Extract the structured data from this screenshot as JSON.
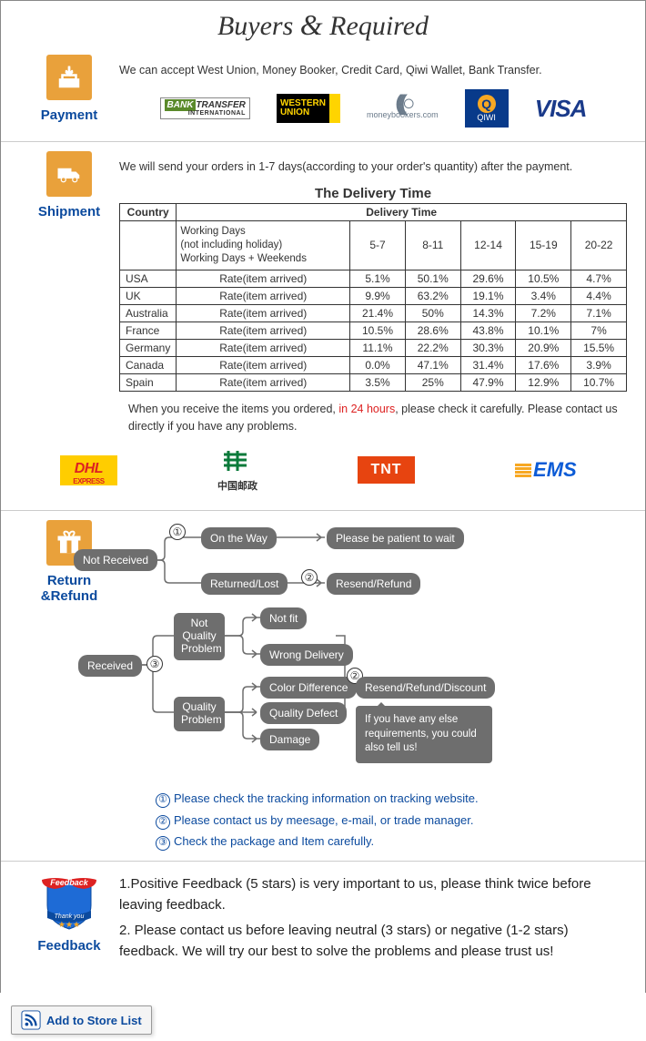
{
  "header": {
    "title_left": "Buyers",
    "title_amp": "&",
    "title_right": "Required"
  },
  "payment": {
    "label": "Payment",
    "intro": "We can accept West Union, Money Booker, Credit Card, Qiwi Wallet, Bank Transfer.",
    "logos": {
      "bank_transfer": {
        "bank": "BANK",
        "transfer": "TRANSFER",
        "intl": "INTERNATIONAL"
      },
      "western_union": {
        "l1": "WESTERN",
        "l2": "UNION"
      },
      "moneybookers": {
        "domain": "moneybookers.com"
      },
      "qiwi": {
        "q": "Q",
        "name": "QIWI"
      },
      "visa": "VISA"
    },
    "icon_color": "#e9a13b",
    "label_color": "#0b4a9e"
  },
  "shipment": {
    "label": "Shipment",
    "intro": "We will send your orders in 1-7 days(according to your order's quantity) after the payment.",
    "table": {
      "title": "The Delivery Time",
      "country_header": "Country",
      "delivery_header": "Delivery Time",
      "wd_line1": "Working Days",
      "wd_line2": "(not including holiday)",
      "wd_line3": "Working Days + Weekends",
      "rate_label": "Rate(item arrived)",
      "time_cols": [
        "5-7",
        "8-11",
        "12-14",
        "15-19",
        "20-22"
      ],
      "rows": [
        {
          "country": "USA",
          "rates": [
            "5.1%",
            "50.1%",
            "29.6%",
            "10.5%",
            "4.7%"
          ]
        },
        {
          "country": "UK",
          "rates": [
            "9.9%",
            "63.2%",
            "19.1%",
            "3.4%",
            "4.4%"
          ]
        },
        {
          "country": "Australia",
          "rates": [
            "21.4%",
            "50%",
            "14.3%",
            "7.2%",
            "7.1%"
          ]
        },
        {
          "country": "France",
          "rates": [
            "10.5%",
            "28.6%",
            "43.8%",
            "10.1%",
            "7%"
          ]
        },
        {
          "country": "Germany",
          "rates": [
            "11.1%",
            "22.2%",
            "30.3%",
            "20.9%",
            "15.5%"
          ]
        },
        {
          "country": "Canada",
          "rates": [
            "0.0%",
            "47.1%",
            "31.4%",
            "17.6%",
            "3.9%"
          ]
        },
        {
          "country": "Spain",
          "rates": [
            "3.5%",
            "25%",
            "47.9%",
            "12.9%",
            "10.7%"
          ]
        }
      ]
    },
    "note_before": "When you receive the items you ordered, ",
    "note_red": "in 24 hours",
    "note_after": ", please check it carefully. Please contact us directly if you have any problems.",
    "carriers": {
      "dhl": {
        "name": "DHL",
        "sub": "EXPRESS"
      },
      "china_post": "中国邮政",
      "tnt": "TNT",
      "ems": "EMS"
    }
  },
  "return_refund": {
    "label": "Return &Refund",
    "nodes": {
      "not_received": "Not Received",
      "on_the_way": "On the Way",
      "returned_lost": "Returned/Lost",
      "be_patient": "Please be patient to wait",
      "resend_refund": "Resend/Refund",
      "received": "Received",
      "not_quality": "Not\nQuality\nProblem",
      "quality": "Quality\nProblem",
      "not_fit": "Not fit",
      "wrong_delivery": "Wrong Delivery",
      "color_diff": "Color Difference",
      "quality_defect": "Quality Defect",
      "damage": "Damage",
      "resend_refund_discount": "Resend/Refund/Discount",
      "speech": "If you have any else requirements, you could also tell us!"
    },
    "circles": {
      "c1": "①",
      "c2": "②",
      "c3": "③"
    },
    "legend": {
      "l1": "Please check the tracking information on tracking website.",
      "l2": "Please contact us by meesage, e-mail, or trade manager.",
      "l3": "Check the package and Item carefully."
    },
    "colors": {
      "node_bg": "#6e6e6e",
      "node_text": "#ffffff",
      "line": "#6e6e6e",
      "legend_text": "#0b4a9e"
    }
  },
  "feedback": {
    "label": "Feedback",
    "badge": {
      "ribbon_top": "Feedback",
      "ribbon_bottom": "Thank you"
    },
    "lines": [
      "1.Positive Feedback (5 stars) is very important to us, please think twice before leaving feedback.",
      "2. Please contact us before leaving neutral (3 stars) or negative (1-2 stars) feedback. We will try our best to solve the problems and please trust us!"
    ]
  },
  "store_button": {
    "text": "Add to Store List"
  }
}
